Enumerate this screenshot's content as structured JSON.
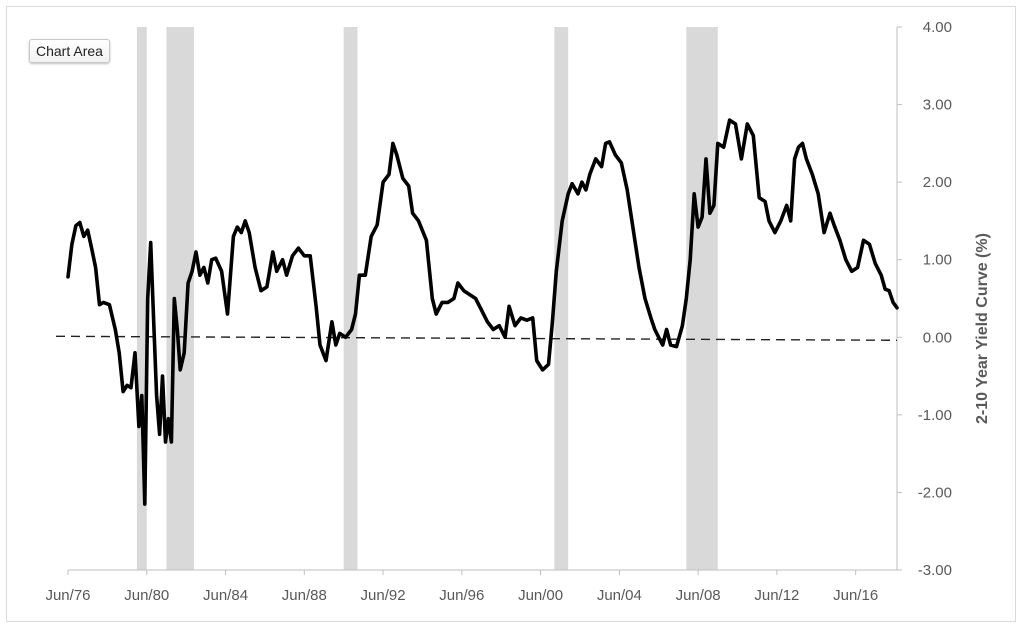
{
  "tooltip": {
    "label": "Chart Area"
  },
  "chart_data": {
    "type": "line",
    "title": "",
    "xlabel": "",
    "ylabel": "2-10 Year  Yield Curve (%)",
    "ylim": [
      -3,
      4
    ],
    "xlim": [
      1976.5,
      2018.6
    ],
    "y_ticks": [
      {
        "v": 4,
        "label": "4.00"
      },
      {
        "v": 3,
        "label": "3.00"
      },
      {
        "v": 2,
        "label": "2.00"
      },
      {
        "v": 1,
        "label": "1.00"
      },
      {
        "v": 0,
        "label": "0.00"
      },
      {
        "v": -1,
        "label": "-1.00"
      },
      {
        "v": -2,
        "label": "-2.00"
      },
      {
        "v": -3,
        "label": "-3.00"
      }
    ],
    "x_ticks": [
      {
        "v": 1976.5,
        "label": "Jun/76"
      },
      {
        "v": 1980.5,
        "label": "Jun/80"
      },
      {
        "v": 1984.5,
        "label": "Jun/84"
      },
      {
        "v": 1988.5,
        "label": "Jun/88"
      },
      {
        "v": 1992.5,
        "label": "Jun/92"
      },
      {
        "v": 1996.5,
        "label": "Jun/96"
      },
      {
        "v": 2000.5,
        "label": "Jun/00"
      },
      {
        "v": 2004.5,
        "label": "Jun/04"
      },
      {
        "v": 2008.5,
        "label": "Jun/08"
      },
      {
        "v": 2012.5,
        "label": "Jun/12"
      },
      {
        "v": 2016.5,
        "label": "Jun/16"
      }
    ],
    "recessions": [
      [
        1980.0,
        1980.5
      ],
      [
        1981.5,
        1982.9
      ],
      [
        1990.5,
        1991.2
      ],
      [
        2001.2,
        2001.9
      ],
      [
        2007.9,
        2009.5
      ]
    ],
    "reference_line": {
      "y": 0,
      "style": "dashed"
    },
    "series": [
      {
        "name": "",
        "points": [
          [
            1976.5,
            0.78
          ],
          [
            1976.7,
            1.2
          ],
          [
            1976.9,
            1.44
          ],
          [
            1977.1,
            1.48
          ],
          [
            1977.3,
            1.3
          ],
          [
            1977.5,
            1.38
          ],
          [
            1977.7,
            1.15
          ],
          [
            1977.9,
            0.9
          ],
          [
            1978.1,
            0.42
          ],
          [
            1978.3,
            0.45
          ],
          [
            1978.6,
            0.42
          ],
          [
            1978.9,
            0.1
          ],
          [
            1979.1,
            -0.2
          ],
          [
            1979.3,
            -0.7
          ],
          [
            1979.5,
            -0.62
          ],
          [
            1979.7,
            -0.65
          ],
          [
            1979.9,
            -0.2
          ],
          [
            1980.1,
            -1.15
          ],
          [
            1980.25,
            -0.75
          ],
          [
            1980.4,
            -2.15
          ],
          [
            1980.55,
            0.5
          ],
          [
            1980.7,
            1.22
          ],
          [
            1980.85,
            0.2
          ],
          [
            1981.0,
            -0.75
          ],
          [
            1981.15,
            -1.25
          ],
          [
            1981.3,
            -0.5
          ],
          [
            1981.45,
            -1.35
          ],
          [
            1981.6,
            -1.05
          ],
          [
            1981.75,
            -1.35
          ],
          [
            1981.9,
            0.5
          ],
          [
            1982.05,
            0.1
          ],
          [
            1982.2,
            -0.42
          ],
          [
            1982.4,
            -0.2
          ],
          [
            1982.6,
            0.7
          ],
          [
            1982.8,
            0.85
          ],
          [
            1983.0,
            1.1
          ],
          [
            1983.2,
            0.8
          ],
          [
            1983.4,
            0.9
          ],
          [
            1983.6,
            0.7
          ],
          [
            1983.8,
            1.0
          ],
          [
            1984.0,
            1.02
          ],
          [
            1984.3,
            0.85
          ],
          [
            1984.6,
            0.3
          ],
          [
            1984.9,
            1.3
          ],
          [
            1985.1,
            1.42
          ],
          [
            1985.3,
            1.35
          ],
          [
            1985.5,
            1.5
          ],
          [
            1985.7,
            1.35
          ],
          [
            1986.0,
            0.9
          ],
          [
            1986.3,
            0.6
          ],
          [
            1986.6,
            0.65
          ],
          [
            1986.9,
            1.1
          ],
          [
            1987.1,
            0.85
          ],
          [
            1987.4,
            1.0
          ],
          [
            1987.6,
            0.8
          ],
          [
            1987.9,
            1.05
          ],
          [
            1988.2,
            1.15
          ],
          [
            1988.5,
            1.05
          ],
          [
            1988.8,
            1.05
          ],
          [
            1989.1,
            0.4
          ],
          [
            1989.3,
            -0.1
          ],
          [
            1989.6,
            -0.3
          ],
          [
            1989.9,
            0.2
          ],
          [
            1990.1,
            -0.1
          ],
          [
            1990.3,
            0.05
          ],
          [
            1990.6,
            0.0
          ],
          [
            1990.9,
            0.1
          ],
          [
            1991.1,
            0.3
          ],
          [
            1991.3,
            0.8
          ],
          [
            1991.6,
            0.8
          ],
          [
            1991.9,
            1.3
          ],
          [
            1992.2,
            1.45
          ],
          [
            1992.5,
            2.0
          ],
          [
            1992.8,
            2.1
          ],
          [
            1993.0,
            2.5
          ],
          [
            1993.2,
            2.35
          ],
          [
            1993.5,
            2.05
          ],
          [
            1993.8,
            1.95
          ],
          [
            1994.0,
            1.6
          ],
          [
            1994.3,
            1.5
          ],
          [
            1994.7,
            1.25
          ],
          [
            1995.0,
            0.5
          ],
          [
            1995.2,
            0.3
          ],
          [
            1995.5,
            0.45
          ],
          [
            1995.8,
            0.45
          ],
          [
            1996.1,
            0.5
          ],
          [
            1996.3,
            0.7
          ],
          [
            1996.6,
            0.6
          ],
          [
            1996.9,
            0.55
          ],
          [
            1997.2,
            0.5
          ],
          [
            1997.5,
            0.35
          ],
          [
            1997.8,
            0.2
          ],
          [
            1998.1,
            0.1
          ],
          [
            1998.4,
            0.15
          ],
          [
            1998.7,
            0.0
          ],
          [
            1998.9,
            0.4
          ],
          [
            1999.2,
            0.15
          ],
          [
            1999.5,
            0.25
          ],
          [
            1999.8,
            0.22
          ],
          [
            2000.1,
            0.25
          ],
          [
            2000.3,
            -0.3
          ],
          [
            2000.6,
            -0.42
          ],
          [
            2000.9,
            -0.35
          ],
          [
            2001.1,
            0.2
          ],
          [
            2001.3,
            0.85
          ],
          [
            2001.6,
            1.5
          ],
          [
            2001.9,
            1.85
          ],
          [
            2002.1,
            1.98
          ],
          [
            2002.4,
            1.85
          ],
          [
            2002.6,
            2.0
          ],
          [
            2002.8,
            1.9
          ],
          [
            2003.0,
            2.1
          ],
          [
            2003.3,
            2.3
          ],
          [
            2003.6,
            2.2
          ],
          [
            2003.8,
            2.5
          ],
          [
            2004.0,
            2.52
          ],
          [
            2004.3,
            2.35
          ],
          [
            2004.6,
            2.25
          ],
          [
            2004.9,
            1.9
          ],
          [
            2005.2,
            1.4
          ],
          [
            2005.5,
            0.9
          ],
          [
            2005.8,
            0.5
          ],
          [
            2006.1,
            0.25
          ],
          [
            2006.3,
            0.1
          ],
          [
            2006.5,
            0.0
          ],
          [
            2006.7,
            -0.1
          ],
          [
            2006.9,
            0.1
          ],
          [
            2007.1,
            -0.1
          ],
          [
            2007.4,
            -0.12
          ],
          [
            2007.7,
            0.15
          ],
          [
            2007.9,
            0.5
          ],
          [
            2008.1,
            1.0
          ],
          [
            2008.3,
            1.85
          ],
          [
            2008.5,
            1.42
          ],
          [
            2008.7,
            1.55
          ],
          [
            2008.9,
            2.3
          ],
          [
            2009.1,
            1.6
          ],
          [
            2009.3,
            1.7
          ],
          [
            2009.5,
            2.5
          ],
          [
            2009.8,
            2.45
          ],
          [
            2010.1,
            2.8
          ],
          [
            2010.4,
            2.75
          ],
          [
            2010.7,
            2.3
          ],
          [
            2011.0,
            2.75
          ],
          [
            2011.3,
            2.6
          ],
          [
            2011.6,
            1.8
          ],
          [
            2011.9,
            1.75
          ],
          [
            2012.1,
            1.5
          ],
          [
            2012.4,
            1.35
          ],
          [
            2012.7,
            1.5
          ],
          [
            2013.0,
            1.7
          ],
          [
            2013.2,
            1.5
          ],
          [
            2013.4,
            2.3
          ],
          [
            2013.6,
            2.45
          ],
          [
            2013.8,
            2.5
          ],
          [
            2014.0,
            2.3
          ],
          [
            2014.3,
            2.1
          ],
          [
            2014.6,
            1.85
          ],
          [
            2014.9,
            1.35
          ],
          [
            2015.2,
            1.6
          ],
          [
            2015.4,
            1.45
          ],
          [
            2015.7,
            1.25
          ],
          [
            2016.0,
            1.0
          ],
          [
            2016.3,
            0.85
          ],
          [
            2016.6,
            0.9
          ],
          [
            2016.9,
            1.25
          ],
          [
            2017.2,
            1.2
          ],
          [
            2017.5,
            0.95
          ],
          [
            2017.8,
            0.8
          ],
          [
            2018.0,
            0.62
          ],
          [
            2018.2,
            0.6
          ],
          [
            2018.4,
            0.45
          ],
          [
            2018.6,
            0.38
          ]
        ]
      }
    ]
  }
}
